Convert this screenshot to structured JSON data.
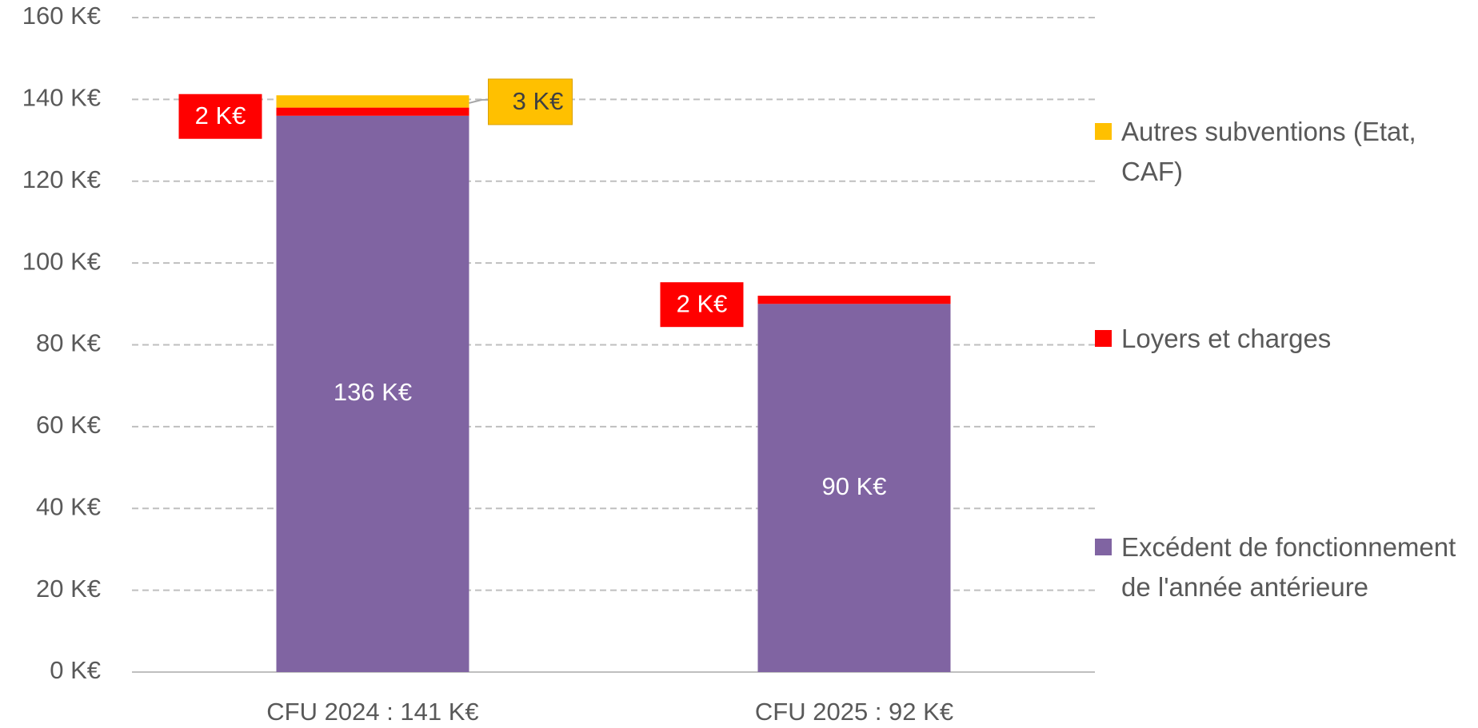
{
  "chart_data": {
    "type": "stacked_bar",
    "categories": [
      "CFU 2024 : 141 K€",
      "CFU 2025 : 92 K€"
    ],
    "series": [
      {
        "name": "Excédent de fonctionnement de l'année antérieure",
        "color": "#8064a2",
        "values": [
          136,
          90
        ],
        "value_labels": [
          "136 K€",
          "90 K€"
        ]
      },
      {
        "name": "Loyers et charges",
        "color": "#ff0000",
        "values": [
          2,
          2
        ],
        "value_labels": [
          "2 K€",
          "2 K€"
        ]
      },
      {
        "name": "Autres subventions (Etat, CAF)",
        "color": "#ffc000",
        "values": [
          3,
          null
        ],
        "value_labels": [
          "3 K€",
          null
        ]
      }
    ],
    "ylim": [
      0,
      160
    ],
    "yticks": [
      {
        "value": 0,
        "label": "0 K€"
      },
      {
        "value": 20,
        "label": "20 K€"
      },
      {
        "value": 40,
        "label": "40 K€"
      },
      {
        "value": 60,
        "label": "60 K€"
      },
      {
        "value": 80,
        "label": "80 K€"
      },
      {
        "value": 100,
        "label": "100 K€"
      },
      {
        "value": 120,
        "label": "120 K€"
      },
      {
        "value": 140,
        "label": "140 K€"
      },
      {
        "value": 160,
        "label": "160 K€"
      }
    ],
    "grid": true,
    "legend": "right"
  }
}
